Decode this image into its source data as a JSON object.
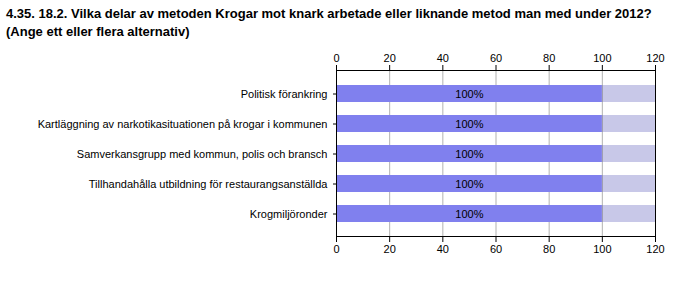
{
  "chart_data": {
    "type": "bar",
    "orientation": "horizontal",
    "title": "4.35. 18.2. Vilka delar av metoden Krogar mot knark arbetade eller liknande metod man med under 2012?",
    "subtitle": "(Ange ett eller flera alternativ)",
    "categories": [
      "Krogmiljöronder",
      "Tillhandahålla utbildning för restaurangsanställda",
      "Samverkansgrupp med kommun, polis och bransch",
      "Kartläggning av narkotikasituationen på krogar i kommunen",
      "Politisk förankring"
    ],
    "values": [
      100,
      100,
      100,
      100,
      100
    ],
    "value_labels": [
      "100%",
      "100%",
      "100%",
      "100%",
      "100%"
    ],
    "data_labels": true,
    "color": "#8080ee",
    "xlim": [
      0,
      120
    ],
    "xticks": [
      0,
      20,
      40,
      60,
      80,
      100,
      120
    ],
    "grid": true
  }
}
